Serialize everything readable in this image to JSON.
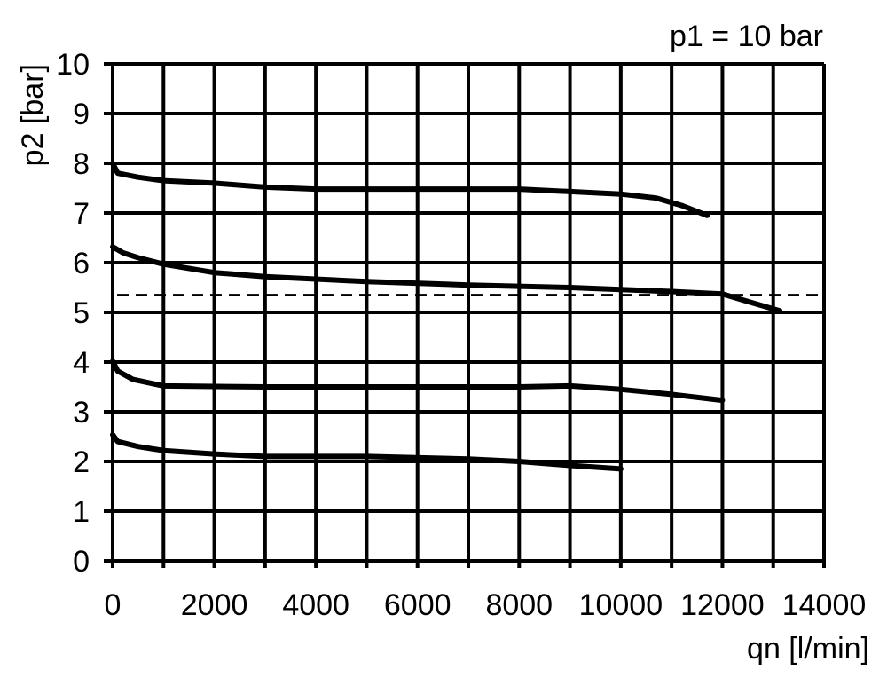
{
  "chart_data": {
    "type": "line",
    "title": "p1 = 10 bar",
    "xlabel": "qn [l/min]",
    "ylabel": "p2 [bar]",
    "xlim": [
      0,
      14000
    ],
    "ylim": [
      0,
      10
    ],
    "x_ticks": [
      0,
      2000,
      4000,
      6000,
      8000,
      10000,
      12000,
      14000
    ],
    "y_ticks": [
      0,
      1,
      2,
      3,
      4,
      5,
      6,
      7,
      8,
      9,
      10
    ],
    "grid": true,
    "grid_x_step": 1000,
    "grid_y_step": 1,
    "line_color": "#000000",
    "reference_line": {
      "style": "dashed",
      "y": 5.35,
      "x_range": [
        0,
        14000
      ]
    },
    "series": [
      {
        "points": [
          [
            0,
            8.0
          ],
          [
            100,
            7.8
          ],
          [
            500,
            7.72
          ],
          [
            1000,
            7.65
          ],
          [
            2000,
            7.6
          ],
          [
            3000,
            7.52
          ],
          [
            4000,
            7.48
          ],
          [
            6000,
            7.48
          ],
          [
            8000,
            7.48
          ],
          [
            9000,
            7.43
          ],
          [
            10000,
            7.38
          ],
          [
            10700,
            7.3
          ],
          [
            11200,
            7.15
          ],
          [
            11700,
            6.95
          ]
        ]
      },
      {
        "points": [
          [
            0,
            6.32
          ],
          [
            200,
            6.2
          ],
          [
            500,
            6.1
          ],
          [
            1000,
            5.97
          ],
          [
            2000,
            5.8
          ],
          [
            3000,
            5.72
          ],
          [
            5000,
            5.62
          ],
          [
            7000,
            5.55
          ],
          [
            9000,
            5.5
          ],
          [
            11000,
            5.42
          ],
          [
            12000,
            5.37
          ],
          [
            12500,
            5.22
          ],
          [
            13130,
            5.03
          ]
        ]
      },
      {
        "points": [
          [
            0,
            4.02
          ],
          [
            100,
            3.82
          ],
          [
            400,
            3.65
          ],
          [
            1000,
            3.52
          ],
          [
            3000,
            3.5
          ],
          [
            6000,
            3.5
          ],
          [
            8000,
            3.5
          ],
          [
            9000,
            3.52
          ],
          [
            10000,
            3.45
          ],
          [
            11000,
            3.35
          ],
          [
            12000,
            3.23
          ]
        ]
      },
      {
        "points": [
          [
            0,
            2.54
          ],
          [
            100,
            2.4
          ],
          [
            500,
            2.3
          ],
          [
            1000,
            2.22
          ],
          [
            2000,
            2.15
          ],
          [
            3000,
            2.1
          ],
          [
            5000,
            2.1
          ],
          [
            7000,
            2.05
          ],
          [
            8000,
            2.0
          ],
          [
            9000,
            1.92
          ],
          [
            10000,
            1.85
          ]
        ]
      }
    ]
  }
}
